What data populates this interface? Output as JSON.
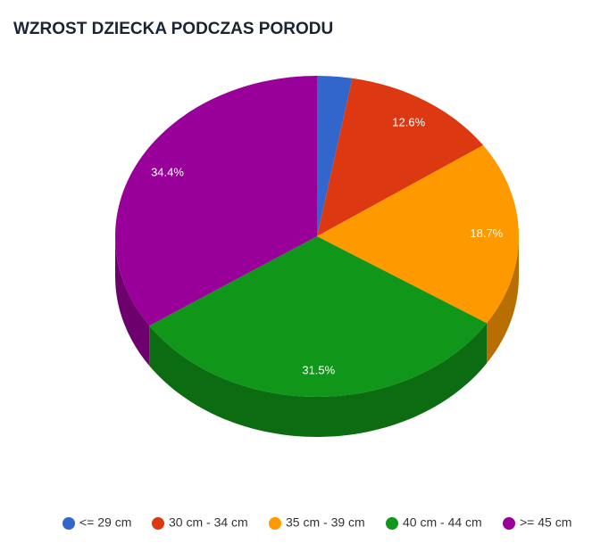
{
  "chart_data": {
    "type": "pie3d",
    "title": "WZROST DZIECKA PODCZAS PORODU",
    "categories": [
      "<= 29 cm",
      "30 cm - 34 cm",
      "35 cm - 39 cm",
      "40 cm - 44 cm",
      ">= 45 cm"
    ],
    "values": [
      2.8,
      12.6,
      18.7,
      31.5,
      34.4
    ],
    "value_labels": [
      null,
      "12.6%",
      "18.7%",
      "31.5%",
      "34.4%"
    ],
    "colors": [
      "#3366cc",
      "#dc3912",
      "#ff9900",
      "#109618",
      "#990099"
    ],
    "legend": "bottom"
  }
}
